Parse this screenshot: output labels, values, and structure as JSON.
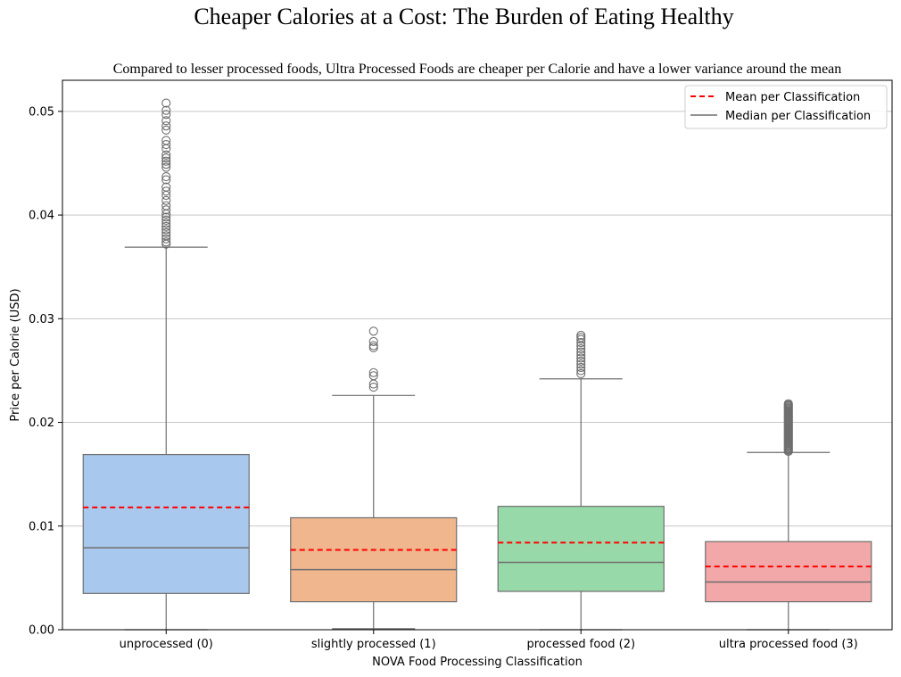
{
  "chart_data": {
    "type": "box",
    "suptitle": "Cheaper Calories at a Cost: The Burden of Eating Healthy",
    "title": "Compared to lesser processed foods, Ultra Processed Foods are cheaper per Calorie and have a lower variance around the mean",
    "xlabel": "NOVA Food Processing Classification",
    "ylabel": "Price per Calorie (USD)",
    "ylim": [
      0.0,
      0.053
    ],
    "yticks": [
      "0.00",
      "0.01",
      "0.02",
      "0.03",
      "0.04",
      "0.05"
    ],
    "grid": "horizontal",
    "legend_position": "upper right",
    "legend": {
      "mean_label": "Mean per Classification",
      "median_label": "Median per Classification"
    },
    "categories": [
      {
        "name": "unprocessed (0)",
        "color": "#a9c8ed",
        "whisker_low": 0.0,
        "q1": 0.0035,
        "median": 0.0079,
        "q3": 0.0169,
        "whisker_high": 0.0369,
        "mean": 0.0118,
        "outliers": [
          0.0372,
          0.0374,
          0.0377,
          0.038,
          0.0383,
          0.0386,
          0.0389,
          0.0392,
          0.0395,
          0.0398,
          0.0401,
          0.0405,
          0.0409,
          0.0414,
          0.0419,
          0.0423,
          0.0427,
          0.0434,
          0.0437,
          0.0446,
          0.0449,
          0.0452,
          0.0455,
          0.0458,
          0.0464,
          0.0468,
          0.0472,
          0.0482,
          0.0486,
          0.0491,
          0.0497,
          0.0501,
          0.0508
        ]
      },
      {
        "name": "slightly processed (1)",
        "color": "#f0b68e",
        "whisker_low": 0.0001,
        "q1": 0.0027,
        "median": 0.0058,
        "q3": 0.0108,
        "whisker_high": 0.0226,
        "mean": 0.0077,
        "outliers": [
          0.0234,
          0.0237,
          0.0245,
          0.0248,
          0.0272,
          0.0274,
          0.0278,
          0.0288
        ]
      },
      {
        "name": "processed food (2)",
        "color": "#98d9a9",
        "whisker_low": 0.0,
        "q1": 0.0037,
        "median": 0.0065,
        "q3": 0.0119,
        "whisker_high": 0.0242,
        "mean": 0.0084,
        "outliers": [
          0.0247,
          0.025,
          0.0253,
          0.0256,
          0.0259,
          0.0262,
          0.0265,
          0.0268,
          0.0271,
          0.0274,
          0.0277,
          0.028,
          0.0282,
          0.0284
        ]
      },
      {
        "name": "ultra processed food (3)",
        "color": "#f2a8a8",
        "whisker_low": 0.0,
        "q1": 0.0027,
        "median": 0.0046,
        "q3": 0.0085,
        "whisker_high": 0.0171,
        "mean": 0.0061,
        "outliers": [
          0.0172,
          0.0173,
          0.0174,
          0.0175,
          0.0176,
          0.0177,
          0.0178,
          0.0179,
          0.018,
          0.0181,
          0.0182,
          0.0183,
          0.0184,
          0.0185,
          0.0186,
          0.0187,
          0.0188,
          0.0189,
          0.019,
          0.0191,
          0.0192,
          0.0193,
          0.0194,
          0.0195,
          0.0196,
          0.0197,
          0.0198,
          0.0199,
          0.02,
          0.0201,
          0.0202,
          0.0203,
          0.0204,
          0.0205,
          0.0206,
          0.0207,
          0.0208,
          0.0209,
          0.021,
          0.0211,
          0.0212,
          0.0213,
          0.0214,
          0.0215,
          0.0216,
          0.0217,
          0.0218
        ]
      }
    ]
  }
}
